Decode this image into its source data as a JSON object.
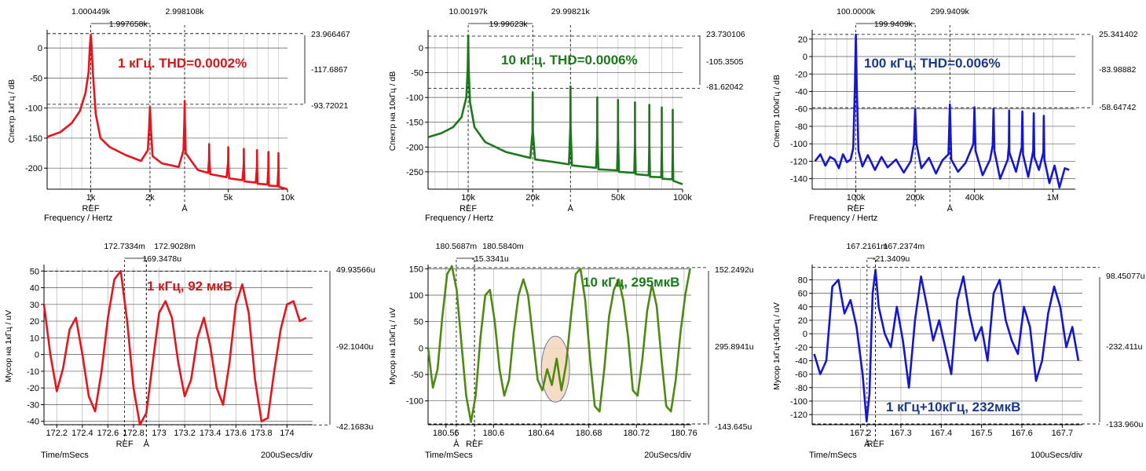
{
  "chart_data": [
    {
      "type": "line",
      "color": "#e8141c",
      "title": "1 кГц. THD=0.0002%",
      "ylabel": "Спектр 1кГц / dB",
      "xlabel": "Frequency / Hertz",
      "xscale": "log",
      "xlim": [
        600,
        10000
      ],
      "ylim": [
        -235,
        25
      ],
      "yticks": [
        "0",
        "-50",
        "-100",
        "-150",
        "-200"
      ],
      "xticks": [
        "1k",
        "2k",
        "5k",
        "10k"
      ],
      "markers_bottom": [
        "REF",
        "A"
      ],
      "cursor_top": [
        "1.000449k",
        "1.997658k",
        "2.998108k"
      ],
      "right_labels": [
        "23.966467",
        "-117.6867",
        "-93.72021"
      ],
      "grid": true,
      "x": [
        600,
        700,
        800,
        880,
        940,
        975,
        990,
        1000,
        1010,
        1025,
        1060,
        1120,
        1250,
        1500,
        1800,
        1950,
        1980,
        2000,
        2020,
        2060,
        2300,
        2800,
        2960,
        2990,
        3000,
        3010,
        3040,
        3500,
        3950,
        3990,
        4000,
        4010,
        4050,
        4900,
        4990,
        5000,
        5010,
        5050,
        5900,
        5990,
        6000,
        6010,
        6050,
        6900,
        6990,
        7000,
        7010,
        7050,
        7900,
        7990,
        8000,
        8010,
        8050,
        8900,
        8990,
        9000,
        9010,
        9050,
        10000
      ],
      "y": [
        -148,
        -140,
        -125,
        -105,
        -75,
        -40,
        5,
        22,
        5,
        -40,
        -110,
        -150,
        -165,
        -178,
        -188,
        -170,
        -130,
        -98,
        -130,
        -180,
        -192,
        -198,
        -170,
        -120,
        -88,
        -120,
        -175,
        -203,
        -208,
        -185,
        -160,
        -185,
        -210,
        -215,
        -190,
        -165,
        -190,
        -217,
        -220,
        -195,
        -168,
        -195,
        -222,
        -224,
        -198,
        -170,
        -198,
        -226,
        -227,
        -200,
        -173,
        -200,
        -229,
        -230,
        -202,
        -175,
        -202,
        -231,
        -235
      ]
    },
    {
      "type": "line",
      "color": "#1a7a1a",
      "title": "10 кГц. THD=0.0006%",
      "ylabel": "Спектр на 10кГц / dB",
      "xlabel": "Frequency / Hertz",
      "xscale": "log",
      "xlim": [
        6500,
        100000
      ],
      "ylim": [
        -285,
        30
      ],
      "yticks": [
        "0",
        "-50",
        "-100",
        "-150",
        "-200",
        "-250"
      ],
      "xticks": [
        "10k",
        "20k",
        "50k",
        "100k"
      ],
      "markers_bottom": [
        "REF",
        "A"
      ],
      "cursor_top": [
        "10.00197k",
        "19.99623k",
        "29.99821k"
      ],
      "right_labels": [
        "23.730106",
        "-105.3505",
        "-81.62042"
      ],
      "grid": true,
      "x": [
        6500,
        7500,
        8500,
        9300,
        9800,
        9950,
        10000,
        10050,
        10200,
        10700,
        12000,
        15000,
        19500,
        19950,
        20000,
        20050,
        20500,
        25000,
        29500,
        29950,
        30000,
        30050,
        30500,
        39500,
        39950,
        40000,
        40050,
        40500,
        49500,
        49950,
        50000,
        50050,
        50500,
        59500,
        59950,
        60000,
        60050,
        60500,
        69500,
        69950,
        70000,
        70050,
        70500,
        79500,
        79950,
        80000,
        80050,
        80500,
        89500,
        89950,
        90000,
        90050,
        90500,
        100000
      ],
      "y": [
        -180,
        -172,
        -160,
        -140,
        -100,
        -40,
        25,
        -40,
        -110,
        -160,
        -190,
        -210,
        -222,
        -170,
        -90,
        -170,
        -225,
        -230,
        -235,
        -160,
        -78,
        -160,
        -237,
        -242,
        -180,
        -100,
        -180,
        -245,
        -247,
        -185,
        -105,
        -185,
        -250,
        -252,
        -190,
        -110,
        -190,
        -255,
        -257,
        -195,
        -115,
        -195,
        -260,
        -261,
        -200,
        -120,
        -200,
        -264,
        -265,
        -205,
        -125,
        -205,
        -268,
        -275
      ]
    },
    {
      "type": "line",
      "color": "#1515d4",
      "title": "100 кГц. THD=0.006%",
      "ylabel": "Спектр 100кГц / dB",
      "xlabel": "Frequency / Hertz",
      "xscale": "log",
      "xlim": [
        60000,
        1300000
      ],
      "ylim": [
        -152,
        27
      ],
      "yticks": [
        "20",
        "0",
        "-20",
        "-40",
        "-60",
        "-80",
        "-100",
        "-120",
        "-140"
      ],
      "xticks": [
        "100k",
        "200k",
        "400k",
        "1M"
      ],
      "markers_bottom": [
        "REF",
        "A"
      ],
      "cursor_top": [
        "100.0000k",
        "199.9409k",
        "299.9409k"
      ],
      "right_labels": [
        "25.341402",
        "-83.98882",
        "-58.64742"
      ],
      "grid": true,
      "x": [
        62000,
        66000,
        70000,
        74000,
        78000,
        82000,
        86000,
        90000,
        94000,
        97000,
        99000,
        100000,
        101000,
        103000,
        108000,
        115000,
        125000,
        135000,
        145000,
        160000,
        175000,
        190000,
        197000,
        200000,
        203000,
        215000,
        235000,
        255000,
        275000,
        295000,
        300000,
        305000,
        330000,
        360000,
        395000,
        400000,
        405000,
        440000,
        480000,
        495000,
        500000,
        505000,
        540000,
        590000,
        598000,
        600000,
        602000,
        650000,
        695000,
        700000,
        705000,
        750000,
        795000,
        800000,
        805000,
        850000,
        895000,
        900000,
        905000,
        960000,
        1020000,
        1080000,
        1150000,
        1210000
      ],
      "y": [
        -120,
        -112,
        -125,
        -115,
        -118,
        -128,
        -112,
        -121,
        -118,
        -105,
        -30,
        25,
        -30,
        -108,
        -126,
        -113,
        -130,
        -115,
        -127,
        -118,
        -133,
        -120,
        -100,
        -60,
        -100,
        -128,
        -116,
        -134,
        -119,
        -112,
        -55,
        -118,
        -132,
        -122,
        -100,
        -58,
        -108,
        -136,
        -118,
        -102,
        -60,
        -108,
        -140,
        -118,
        -102,
        -62,
        -110,
        -132,
        -104,
        -63,
        -112,
        -138,
        -108,
        -65,
        -115,
        -130,
        -110,
        -68,
        -118,
        -145,
        -125,
        -150,
        -128,
        -130
      ]
    },
    {
      "type": "line",
      "color": "#e8141c",
      "title": "1 кГц, 92 мкВ",
      "ylabel": "Мусор на 1кГц / uV",
      "xlabel": "Time/mSecs",
      "scale_note": "200uSecs/div",
      "xlim": [
        172.1,
        174.2
      ],
      "ylim": [
        -42,
        52
      ],
      "yticks": [
        "50",
        "40",
        "30",
        "20",
        "10",
        "0",
        "-10",
        "-20",
        "-30",
        "-40"
      ],
      "xticks": [
        "172.2",
        "172.4",
        "172.6",
        "172.8",
        "173",
        "173.2",
        "173.4",
        "173.6",
        "173.8",
        "174"
      ],
      "markers_bottom": [
        "REF",
        "A"
      ],
      "cursor_top": [
        "172.7334m",
        "172.9028m",
        "169.3478u"
      ],
      "right_labels": [
        "49.93566u",
        "-92.1040u",
        "-42.1683u"
      ],
      "grid": true,
      "x": [
        172.1,
        172.15,
        172.2,
        172.25,
        172.3,
        172.35,
        172.4,
        172.45,
        172.5,
        172.55,
        172.6,
        172.65,
        172.7,
        172.75,
        172.8,
        172.85,
        172.9,
        172.95,
        173.0,
        173.05,
        173.1,
        173.15,
        173.2,
        173.25,
        173.3,
        173.35,
        173.4,
        173.45,
        173.5,
        173.55,
        173.6,
        173.65,
        173.7,
        173.75,
        173.8,
        173.85,
        173.9,
        173.95,
        174.0,
        174.05,
        174.1,
        174.15
      ],
      "y": [
        30,
        0,
        -22,
        -8,
        15,
        22,
        0,
        -25,
        -34,
        -10,
        22,
        45,
        50,
        20,
        -20,
        -42,
        -35,
        -5,
        25,
        32,
        22,
        -5,
        -25,
        -15,
        10,
        22,
        5,
        -20,
        -30,
        -5,
        30,
        42,
        25,
        -15,
        -40,
        -38,
        -10,
        15,
        30,
        32,
        20,
        22
      ]
    },
    {
      "type": "line",
      "color": "#4e8a12",
      "title": "10 кГц, 295мкВ",
      "ylabel": "Мусор на 10кГц / uV",
      "xlabel": "Time/mSecs",
      "scale_note": "20uSecs/div",
      "xlim": [
        180.545,
        180.766
      ],
      "ylim": [
        -145,
        152
      ],
      "yticks": [
        "150",
        "100",
        "50",
        "0",
        "-50",
        "-100"
      ],
      "xticks": [
        "180.56",
        "180.6",
        "180.64",
        "180.68",
        "180.72",
        "180.76"
      ],
      "markers_bottom": [
        "A",
        "REF"
      ],
      "cursor_top": [
        "180.5687m",
        "180.5840m",
        "-15.3341u"
      ],
      "right_labels": [
        "152.2492u",
        "295.8941u",
        "-143.645u"
      ],
      "grid": true,
      "x": [
        180.545,
        180.549,
        180.553,
        180.557,
        180.561,
        180.565,
        180.569,
        180.573,
        180.577,
        180.581,
        180.585,
        180.589,
        180.593,
        180.597,
        180.601,
        180.605,
        180.609,
        180.613,
        180.617,
        180.621,
        180.625,
        180.629,
        180.633,
        180.637,
        180.641,
        180.645,
        180.649,
        180.653,
        180.657,
        180.661,
        180.665,
        180.669,
        180.673,
        180.677,
        180.681,
        180.685,
        180.689,
        180.693,
        180.697,
        180.701,
        180.705,
        180.709,
        180.713,
        180.717,
        180.721,
        180.725,
        180.729,
        180.733,
        180.737,
        180.741,
        180.745,
        180.749,
        180.753,
        180.757,
        180.761,
        180.765
      ],
      "y": [
        0,
        -75,
        -40,
        60,
        140,
        155,
        110,
        10,
        -90,
        -140,
        -90,
        20,
        100,
        110,
        50,
        -40,
        -90,
        -60,
        30,
        100,
        130,
        100,
        20,
        -60,
        -80,
        -40,
        -70,
        -20,
        -80,
        -30,
        60,
        140,
        150,
        90,
        -20,
        -110,
        -120,
        -40,
        60,
        110,
        130,
        90,
        20,
        -80,
        -90,
        -20,
        70,
        120,
        80,
        -20,
        -110,
        -120,
        -60,
        30,
        100,
        150
      ]
    },
    {
      "type": "line",
      "color": "#1515d4",
      "title": "1 кГц+10кГц, 232мкВ",
      "ylabel": "Мусор 1кГц+10кГц / uV",
      "xlabel": "Time/mSecs",
      "scale_note": "100uSecs/div",
      "xlim": [
        167.08,
        167.75
      ],
      "ylim": [
        -135,
        98
      ],
      "yticks": [
        "80",
        "60",
        "40",
        "20",
        "0",
        "-20",
        "-40",
        "-60",
        "-80",
        "-100",
        "-120"
      ],
      "xticks": [
        "167.2",
        "167.3",
        "167.4",
        "167.5",
        "167.6",
        "167.7"
      ],
      "markers_bottom": [
        "A",
        "REF"
      ],
      "cursor_top": [
        "167.2161m",
        "167.2374m",
        "-21.3409u"
      ],
      "right_labels": [
        "98.45077u",
        "-232.411u",
        "-133.960u"
      ],
      "grid": true,
      "x": [
        167.085,
        167.1,
        167.115,
        167.13,
        167.145,
        167.16,
        167.175,
        167.19,
        167.205,
        167.215,
        167.222,
        167.23,
        167.237,
        167.245,
        167.26,
        167.275,
        167.29,
        167.305,
        167.32,
        167.335,
        167.35,
        167.365,
        167.38,
        167.395,
        167.41,
        167.425,
        167.44,
        167.455,
        167.47,
        167.485,
        167.5,
        167.515,
        167.53,
        167.545,
        167.56,
        167.575,
        167.59,
        167.605,
        167.62,
        167.635,
        167.65,
        167.665,
        167.68,
        167.695,
        167.71,
        167.725,
        167.74
      ],
      "y": [
        -30,
        -60,
        -40,
        70,
        80,
        30,
        50,
        10,
        -60,
        -130,
        -90,
        60,
        95,
        40,
        0,
        -20,
        40,
        -10,
        -80,
        20,
        85,
        40,
        -10,
        20,
        -20,
        -60,
        50,
        85,
        30,
        -10,
        10,
        -40,
        60,
        80,
        20,
        -10,
        -30,
        40,
        10,
        -70,
        -40,
        30,
        70,
        40,
        -20,
        10,
        -40
      ]
    }
  ]
}
